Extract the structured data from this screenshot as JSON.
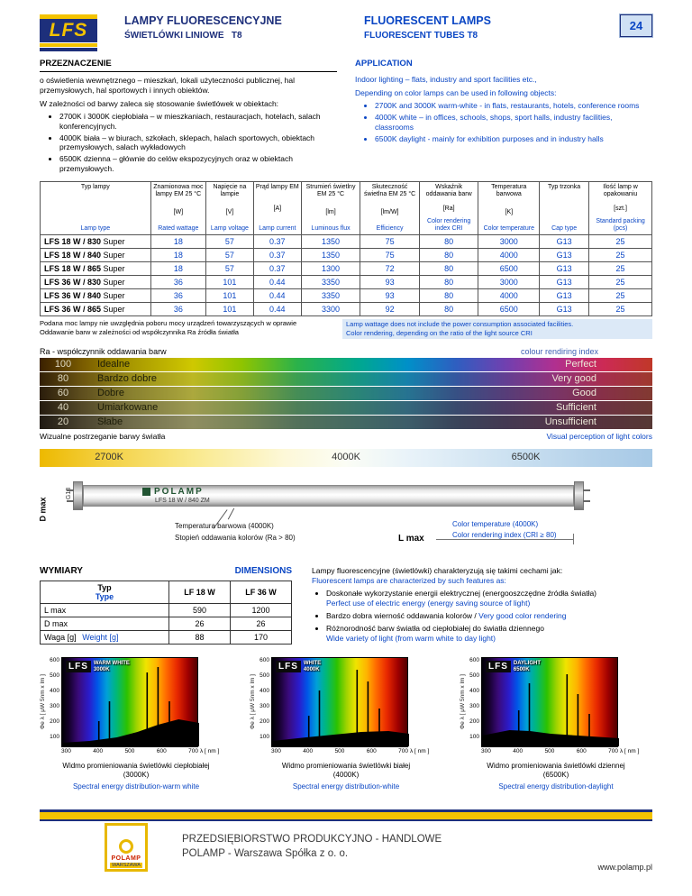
{
  "colors": {
    "navy": "#1d2f7b",
    "blue": "#0a46c4",
    "gold": "#f3c300",
    "light_blue_bg": "#cfe0f4"
  },
  "header": {
    "logo_text": "LFS",
    "title_pl": "LAMPY FLUORESCENCYJNE",
    "subtitle_pl": "ŚWIETLÓWKI LINIOWE   T8",
    "title_en": "FLUORESCENT LAMPS",
    "subtitle_en": "FLUORESCENT TUBES T8",
    "page_number": "24"
  },
  "application": {
    "heading_pl": "PRZEZNACZENIE",
    "heading_en": "APPLICATION",
    "intro_pl": "o oświetlenia wewnętrznego – mieszkań, lokali użyteczności publicznej, hal przemysłowych, hal sportowych i innych obiektów.",
    "lead_pl": "W zależności od barwy zaleca się stosowanie świetlówek w obiektach:",
    "bullets_pl": [
      "2700K i 3000K ciepłobiała – w mieszkaniach, restauracjach, hotelach, salach konferencyjnych.",
      "4000K biała – w biurach, szkołach, sklepach, halach sportowych, obiektach przemysłowych, salach wykładowych",
      "6500K dzienna – głównie do celów ekspozycyjnych oraz w obiektach przemysłowych."
    ],
    "intro_en": "Indoor lighting – flats, industry and sport facilities etc.,",
    "lead_en": "Depending on color lamps can be used in following objects:",
    "bullets_en": [
      "2700K and 3000K warm-white - in flats, restaurants, hotels, conference rooms",
      "4000K white – in offices, schools, shops, sport halls, industry facilities, classrooms",
      "6500K daylight - mainly for exhibition purposes and in industry halls"
    ]
  },
  "product_table": {
    "columns": [
      {
        "pl": "Typ lampy",
        "unit": "",
        "en": "Lamp type"
      },
      {
        "pl": "Znamionowa moc lampy EM 25 °C",
        "unit": "[W]",
        "en": "Rated wattage"
      },
      {
        "pl": "Napięcie na lampie",
        "unit": "[V]",
        "en": "Lamp voltage"
      },
      {
        "pl": "Prąd lampy EM",
        "unit": "[A]",
        "en": "Lamp current"
      },
      {
        "pl": "Strumień świetlny EM 25 °C",
        "unit": "[lm]",
        "en": "Luminous flux"
      },
      {
        "pl": "Skuteczność świetlna EM 25 °C",
        "unit": "[lm/W]",
        "en": "Efficiency"
      },
      {
        "pl": "Wskaźnik oddawania barw",
        "unit": "[Ra]",
        "en": "Color rendering index CRI"
      },
      {
        "pl": "Temperatura barwowa",
        "unit": "[K]",
        "en": "Color temperature"
      },
      {
        "pl": "Typ trzonka",
        "unit": "",
        "en": "Cap type"
      },
      {
        "pl": "Ilość lamp w opakowaniu",
        "unit": "[szt.]",
        "en": "Standard packing (pcs)"
      }
    ],
    "rows": [
      {
        "name": "LFS 18 W / 830",
        "suffix": "Super",
        "values": [
          "18",
          "57",
          "0.37",
          "1350",
          "75",
          "80",
          "3000",
          "G13",
          "25"
        ]
      },
      {
        "name": "LFS 18 W / 840",
        "suffix": "Super",
        "values": [
          "18",
          "57",
          "0.37",
          "1350",
          "75",
          "80",
          "4000",
          "G13",
          "25"
        ]
      },
      {
        "name": "LFS 18 W / 865",
        "suffix": "Super",
        "values": [
          "18",
          "57",
          "0.37",
          "1300",
          "72",
          "80",
          "6500",
          "G13",
          "25"
        ]
      },
      {
        "name": "LFS 36 W / 830",
        "suffix": "Super",
        "values": [
          "36",
          "101",
          "0.44",
          "3350",
          "93",
          "80",
          "3000",
          "G13",
          "25"
        ]
      },
      {
        "name": "LFS 36 W / 840",
        "suffix": "Super",
        "values": [
          "36",
          "101",
          "0.44",
          "3350",
          "93",
          "80",
          "4000",
          "G13",
          "25"
        ]
      },
      {
        "name": "LFS 36 W / 865",
        "suffix": "Super",
        "values": [
          "36",
          "101",
          "0.44",
          "3300",
          "92",
          "80",
          "6500",
          "G13",
          "25"
        ]
      }
    ],
    "note_pl_1": "Podana moc lampy nie uwzględnia poboru mocy urządzeń towarzyszących w oprawie",
    "note_pl_2": "Oddawanie barw w zależności od współczynnika Ra źródła światła",
    "note_en_1": "Lamp wattage does not include the power consumption associated facilities.",
    "note_en_2": "Color rendering, depending on the ratio of the light source CRI"
  },
  "ra_chart": {
    "title_pl": "Ra - współczynnik oddawania barw",
    "title_en": "colour rendiring index",
    "rows": [
      {
        "value": "100",
        "pl": "Idealne",
        "en": "Perfect"
      },
      {
        "value": "80",
        "pl": "Bardzo dobre",
        "en": "Very good"
      },
      {
        "value": "60",
        "pl": "Dobre",
        "en": "Good"
      },
      {
        "value": "40",
        "pl": "Umiarkowane",
        "en": "Sufficient"
      },
      {
        "value": "20",
        "pl": "Słabe",
        "en": "Unsufficient"
      }
    ],
    "footer_pl": "Wizualne postrzeganie barwy światła",
    "footer_en": "Visual perception of light colors"
  },
  "color_temperature": {
    "labels": [
      "2700K",
      "4000K",
      "6500K"
    ]
  },
  "lamp_diagram": {
    "brand": "POLAMP",
    "model": "LFS 18 W / 840 ZM",
    "cap_label": "G13",
    "d_max": "D max",
    "l_max": "L max",
    "callout_pl_1": "Temperatura barwowa (4000K)",
    "callout_pl_2": "Stopień oddawania kolorów (Ra > 80)",
    "callout_en_1": "Color temperature (4000K)",
    "callout_en_2": "Color rendering index (CRI ≥ 80)"
  },
  "dimensions": {
    "title_pl": "WYMIARY",
    "title_en": "DIMENSIONS",
    "col_header_pl": "Typ",
    "col_header_en": "Type",
    "col1": "LF 18 W",
    "col2": "LF 36 W",
    "rows": [
      {
        "label": "L max",
        "label_en": "",
        "v1": "590",
        "v2": "1200"
      },
      {
        "label": "D max",
        "label_en": "",
        "v1": "26",
        "v2": "26"
      },
      {
        "label": "Waga [g]",
        "label_en": "Weight [g]",
        "v1": "88",
        "v2": "170"
      }
    ]
  },
  "features": {
    "intro_pl": "Lampy fluorescencyjne (świetlówki) charakteryzują się takimi cechami jak:",
    "intro_en": "Fluorescent lamps are characterized by such features as:",
    "items": [
      {
        "pl": "Doskonałe wykorzystanie energii elektrycznej (energooszczędne źródła światła)",
        "en": "Perfect use of electric energy (energy saving source of light)"
      },
      {
        "pl": "Bardzo dobra wierność oddawania kolorów /",
        "en": "Very good color rendering"
      },
      {
        "pl": "Różnorodność barw światła od ciepłobiałej do światła dziennego",
        "en": "Wide variety of light (from warm white to day light)"
      }
    ]
  },
  "spectral_charts": {
    "type": "spectral-line",
    "y_label": "Φe λ [ μW 5nm x lm ]",
    "y_ticks": [
      "600",
      "500",
      "400",
      "300",
      "200",
      "100"
    ],
    "x_ticks": [
      "300",
      "400",
      "500",
      "600",
      "700"
    ],
    "x_unit": "λ [ nm ]",
    "x_range_nm": [
      300,
      700
    ],
    "charts": [
      {
        "badge": "LFS",
        "name": "WARM WHITE",
        "kelvin": "3000K",
        "caption_pl": "Widmo promieniowania świetlówki ciepłobiałej",
        "caption_k": "(3000K)",
        "caption_en": "Spectral energy distribution-warm white",
        "peaks_nm": [
          405,
          436,
          546,
          578,
          611
        ],
        "peak_heights": [
          0.28,
          0.5,
          0.82,
          0.88,
          0.5
        ],
        "continuum": [
          [
            0,
            0.04
          ],
          [
            0.2,
            0.06
          ],
          [
            0.4,
            0.1
          ],
          [
            0.55,
            0.16
          ],
          [
            0.7,
            0.24
          ],
          [
            0.85,
            0.3
          ],
          [
            1,
            0.26
          ]
        ]
      },
      {
        "badge": "LFS",
        "name": "WHITE",
        "kelvin": "4000K",
        "caption_pl": "Widmo promieniowania świetlówki białej",
        "caption_k": "(4000K)",
        "caption_en": "Spectral energy distribution-white",
        "peaks_nm": [
          405,
          436,
          546,
          578,
          611
        ],
        "peak_heights": [
          0.34,
          0.62,
          0.85,
          0.72,
          0.42
        ],
        "continuum": [
          [
            0,
            0.06
          ],
          [
            0.25,
            0.1
          ],
          [
            0.45,
            0.13
          ],
          [
            0.65,
            0.16
          ],
          [
            0.85,
            0.17
          ],
          [
            1,
            0.14
          ]
        ]
      },
      {
        "badge": "LFS",
        "name": "DAYLIGHT",
        "kelvin": "6500K",
        "caption_pl": "Widmo promieniowania świetlówki dziennej",
        "caption_k": "(6500K)",
        "caption_en": "Spectral energy distribution-daylight",
        "peaks_nm": [
          405,
          436,
          546,
          578,
          611
        ],
        "peak_heights": [
          0.4,
          0.7,
          0.8,
          0.58,
          0.36
        ],
        "continuum": [
          [
            0,
            0.12
          ],
          [
            0.2,
            0.18
          ],
          [
            0.35,
            0.17
          ],
          [
            0.5,
            0.14
          ],
          [
            0.7,
            0.12
          ],
          [
            1,
            0.09
          ]
        ]
      }
    ]
  },
  "footer": {
    "company_line1": "PRZEDSIĘBIORSTWO PRODUKCYJNO - HANDLOWE",
    "company_line2": "POLAMP - Warszawa Spółka z o. o.",
    "url": "www.polamp.pl",
    "logo_name": "POLAMP",
    "logo_city": "WARSZAWA"
  }
}
